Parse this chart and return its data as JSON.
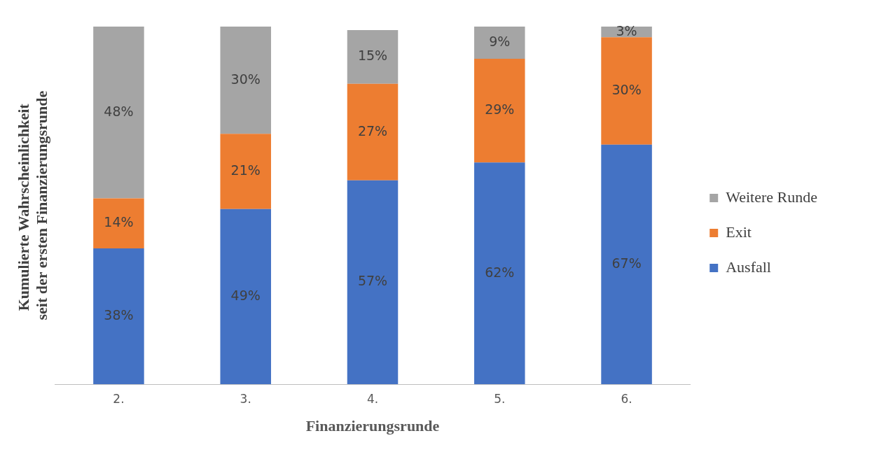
{
  "chart_data": {
    "type": "bar",
    "stacked": true,
    "xlabel": "Finanzierungsrunde",
    "ylabel": "Kumulierte Wahrscheinlichkeit  seit der ersten Finanzierungsrunde",
    "categories": [
      "2.",
      "3.",
      "4.",
      "5.",
      "6."
    ],
    "legend": "right",
    "grid": false,
    "tick_labels": "x",
    "series": [
      {
        "name": "Ausfall",
        "color": "#4472c4",
        "values": [
          38,
          49,
          57,
          62,
          67
        ],
        "value_labels": [
          "38%",
          "49%",
          "57%",
          "62%",
          "67%"
        ]
      },
      {
        "name": "Exit",
        "color": "#ed7d31",
        "values": [
          14,
          21,
          27,
          29,
          30
        ],
        "value_labels": [
          "14%",
          "21%",
          "27%",
          "29%",
          "30%"
        ]
      },
      {
        "name": "Weitere Runde",
        "color": "#a5a5a5",
        "values": [
          48,
          30,
          15,
          9,
          3
        ],
        "value_labels": [
          "48%",
          "30%",
          "15%",
          "9%",
          "3%"
        ]
      }
    ]
  }
}
